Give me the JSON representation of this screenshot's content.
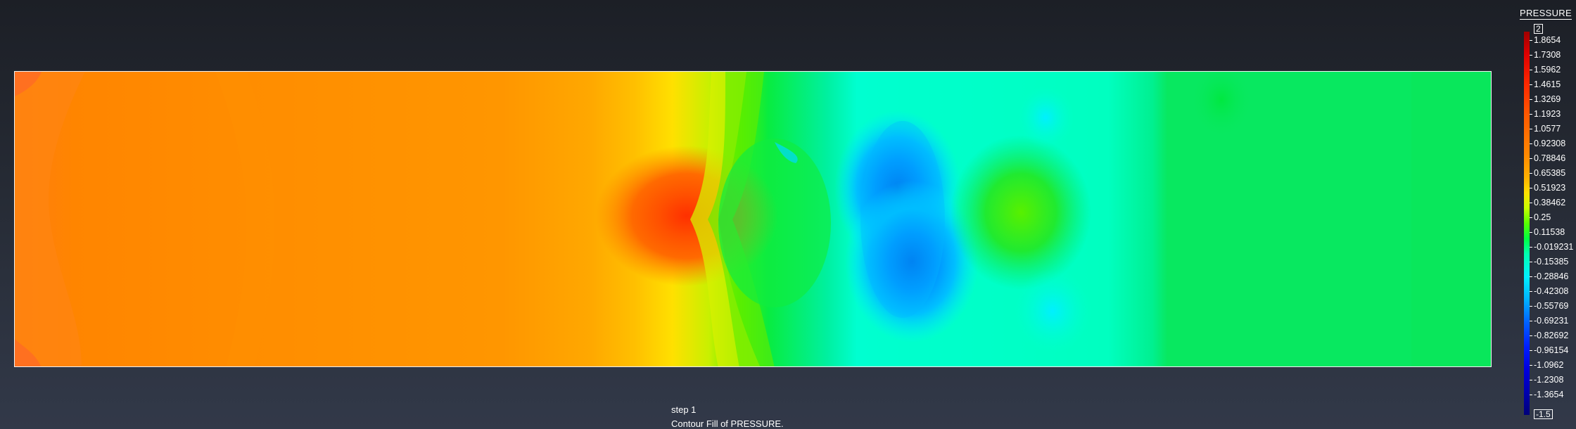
{
  "scale": {
    "title": "PRESSURE",
    "max_box": "2",
    "min_box": "-1.5",
    "labels": [
      "1.8654",
      "1.7308",
      "1.5962",
      "1.4615",
      "1.3269",
      "1.1923",
      "1.0577",
      "0.92308",
      "0.78846",
      "0.65385",
      "0.51923",
      "0.38462",
      "0.25",
      "0.11538",
      "-0.019231",
      "-0.15385",
      "-0.28846",
      "-0.42308",
      "-0.55769",
      "-0.69231",
      "-0.82692",
      "-0.96154",
      "-1.0962",
      "-1.2308",
      "-1.3654"
    ],
    "gradient_colors": [
      "#a00000",
      "#ff2a00",
      "#ff8800",
      "#ffe000",
      "#58ff00",
      "#00ffb0",
      "#00b0ff",
      "#0020ff",
      "#00007a"
    ]
  },
  "footer": {
    "step": "step 1",
    "caption": "Contour Fill of PRESSURE."
  },
  "contour_palette": {
    "orange_dark": "#ff7a14",
    "orange": "#ff8c00",
    "orange_light": "#ff9d00",
    "yellow": "#ffe600",
    "green": "#08e860",
    "cyan": "#00ffc8",
    "light_blue": "#00e8ff",
    "blue": "#0090ff",
    "deep_blue": "#0070ee",
    "red": "#ff3000"
  }
}
